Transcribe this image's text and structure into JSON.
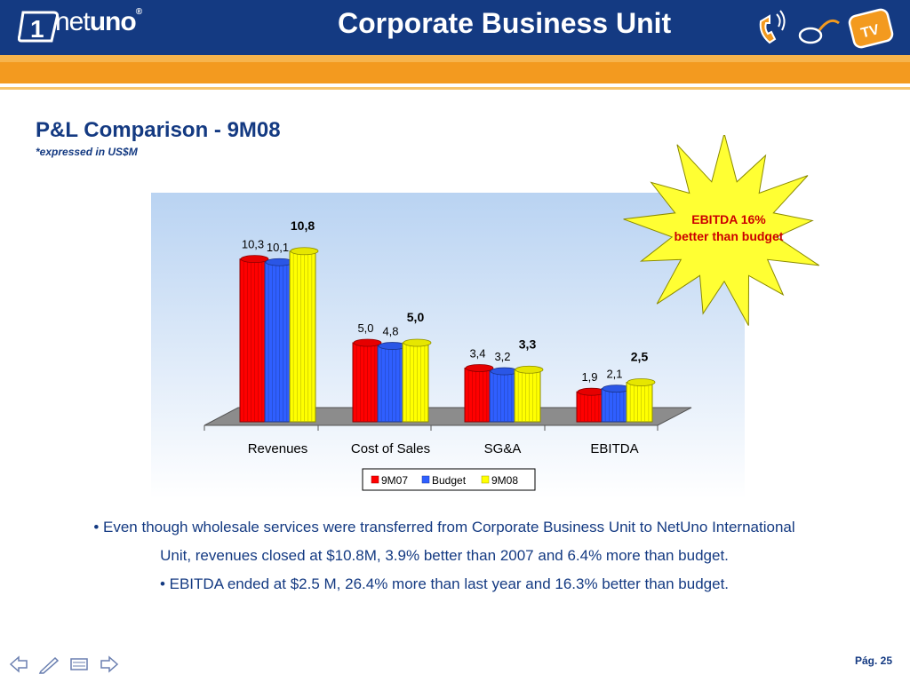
{
  "header": {
    "logo_number": "1",
    "logo_text_thin": "net",
    "logo_text_bold": "uno",
    "logo_reg": "®",
    "title": "Corporate Business Unit",
    "tv_label": "TV"
  },
  "page_title": "P&L Comparison -  9M08",
  "page_subtitle": "*expressed in US$M",
  "callout": {
    "line1": "EBITDA  16%",
    "line2": "better than budget"
  },
  "chart_data": {
    "type": "bar",
    "categories": [
      "Revenues",
      "Cost of Sales",
      "SG&A",
      "EBITDA"
    ],
    "series": [
      {
        "name": "9M07",
        "color": "#ff0000",
        "values": [
          10.3,
          5.0,
          3.4,
          1.9
        ],
        "labels": [
          "10,3",
          "5,0",
          "3,4",
          "1,9"
        ],
        "bold": false
      },
      {
        "name": "Budget",
        "color": "#2f5fff",
        "values": [
          10.1,
          4.8,
          3.2,
          2.1
        ],
        "labels": [
          "10,1",
          "4,8",
          "3,2",
          "2,1"
        ],
        "bold": false
      },
      {
        "name": "9M08",
        "color": "#ffff00",
        "values": [
          10.8,
          5.0,
          3.3,
          2.5
        ],
        "labels": [
          "10,8",
          "5,0",
          "3,3",
          "2,5"
        ],
        "bold": true
      }
    ],
    "ylim": [
      0,
      12
    ],
    "legend": "bottom",
    "grid": false
  },
  "bullets": [
    "• Even though wholesale services were transferred from Corporate Business Unit to NetUno International Unit, revenues closed at $10.8M, 3.9% better than 2007 and 6.4% more than budget.",
    "• EBITDA ended at $2.5 M, 26.4% more than last year and 16.3% better than budget."
  ],
  "footer": {
    "page_number": "Pág. 25"
  }
}
